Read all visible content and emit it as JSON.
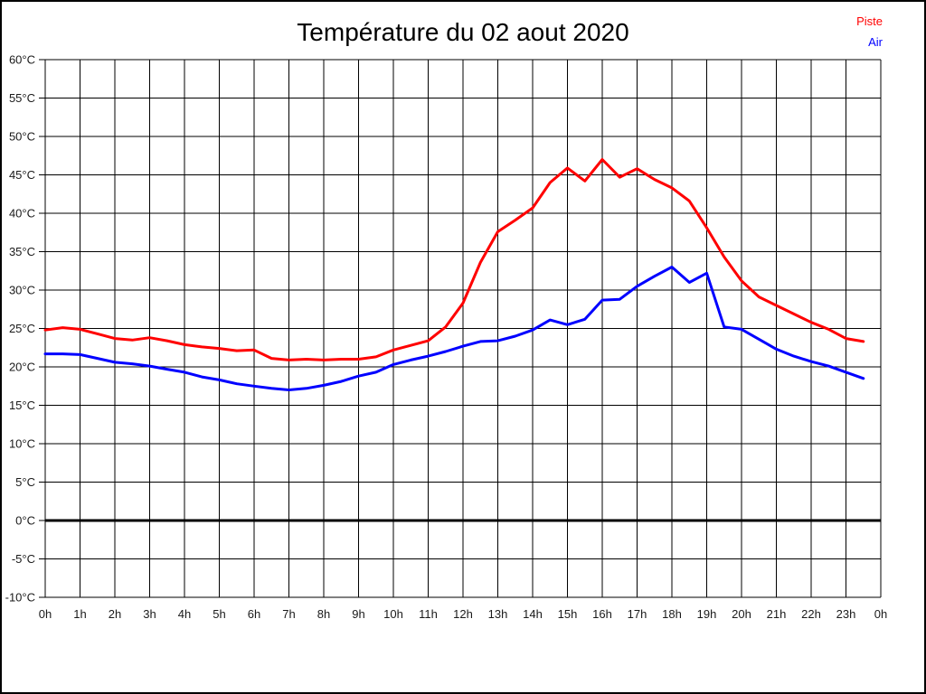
{
  "header": {
    "title": "Température du 02 aout 2020"
  },
  "legend": {
    "items": [
      {
        "label": "Piste",
        "color": "#ff0000"
      },
      {
        "label": "Air",
        "color": "#0000ff"
      }
    ]
  },
  "colors": {
    "background": "#ffffff",
    "frame": "#000000",
    "grid": "#000000",
    "zero_line": "#000000",
    "piste": "#ff0000",
    "air": "#0000ff",
    "tick_text": "#1a1a1a"
  },
  "chart_data": {
    "type": "line",
    "title": "Température du 02 aout 2020",
    "xlabel": "",
    "ylabel": "",
    "xlim": [
      0,
      24
    ],
    "ylim": [
      -10,
      60
    ],
    "y_step": 5,
    "x_step": 1,
    "grid": true,
    "zero_line_value": 0,
    "legend_position": "top-right",
    "x_tick_labels": [
      "0h",
      "1h",
      "2h",
      "3h",
      "4h",
      "5h",
      "6h",
      "7h",
      "8h",
      "9h",
      "10h",
      "11h",
      "12h",
      "13h",
      "14h",
      "15h",
      "16h",
      "17h",
      "18h",
      "19h",
      "20h",
      "21h",
      "22h",
      "23h",
      "0h"
    ],
    "y_tick_labels": [
      "60°C",
      "55°C",
      "50°C",
      "45°C",
      "40°C",
      "35°C",
      "30°C",
      "25°C",
      "20°C",
      "15°C",
      "10°C",
      "5°C",
      "0°C",
      "-5°C",
      "-10°C"
    ],
    "x": [
      0,
      0.5,
      1,
      1.5,
      2,
      2.5,
      3,
      3.5,
      4,
      4.5,
      5,
      5.5,
      6,
      6.5,
      7,
      7.5,
      8,
      8.5,
      9,
      9.5,
      10,
      10.5,
      11,
      11.5,
      12,
      12.5,
      13,
      13.5,
      14,
      14.5,
      15,
      15.5,
      16,
      16.5,
      17,
      17.5,
      18,
      18.5,
      19,
      19.5,
      20,
      20.5,
      21,
      21.5,
      22,
      22.5,
      23,
      23.5
    ],
    "series": [
      {
        "name": "Piste",
        "color": "#ff0000",
        "values": [
          24.8,
          25.1,
          24.9,
          24.3,
          23.7,
          23.5,
          23.8,
          23.4,
          22.9,
          22.6,
          22.4,
          22.1,
          22.2,
          21.1,
          20.9,
          21.0,
          20.9,
          21.0,
          21.0,
          21.3,
          22.2,
          22.8,
          23.4,
          25.2,
          28.3,
          33.6,
          37.6,
          39.1,
          40.7,
          44.0,
          45.9,
          44.2,
          47.0,
          44.7,
          45.8,
          44.4,
          43.3,
          41.6,
          38.1,
          34.3,
          31.2,
          29.1,
          28.0,
          26.9,
          25.8,
          24.9,
          23.7,
          23.3
        ]
      },
      {
        "name": "Air",
        "color": "#0000ff",
        "values": [
          21.7,
          21.7,
          21.6,
          21.1,
          20.6,
          20.4,
          20.1,
          19.7,
          19.3,
          18.7,
          18.3,
          17.8,
          17.5,
          17.2,
          17.0,
          17.2,
          17.6,
          18.1,
          18.8,
          19.3,
          20.3,
          20.9,
          21.4,
          22.0,
          22.7,
          23.3,
          23.4,
          24.0,
          24.8,
          26.1,
          25.5,
          26.2,
          28.7,
          28.8,
          30.5,
          31.8,
          33.0,
          31.0,
          32.2,
          25.2,
          24.9,
          23.6,
          22.3,
          21.4,
          20.7,
          20.1,
          19.3,
          18.5
        ]
      }
    ]
  }
}
